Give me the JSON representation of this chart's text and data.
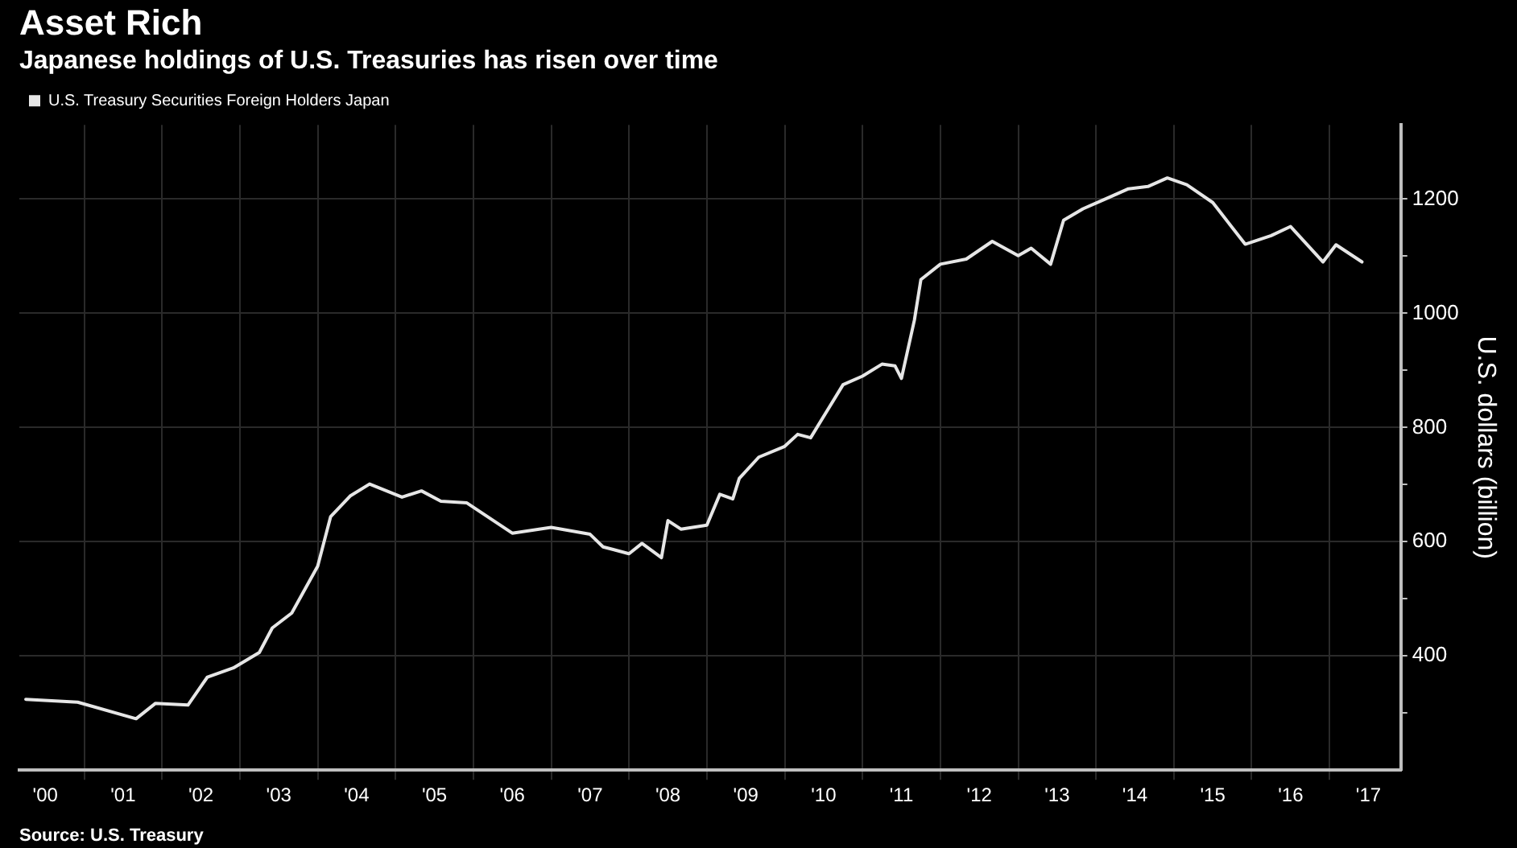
{
  "chart_data": {
    "type": "line",
    "title": "Asset Rich",
    "subtitle": "Japanese holdings of U.S. Treasuries has risen over time",
    "ylabel": "U.S. dollars (billion)",
    "annotations": [
      "Source: U.S. Treasury"
    ],
    "legend": "top left",
    "grid": true,
    "marker": "none",
    "line_style": "solid",
    "xlim": [
      "2000-03",
      "2017-12"
    ],
    "xticks": [
      {
        "value": "2000-07",
        "label": "'00"
      },
      {
        "value": "2001",
        "label": null
      },
      {
        "value": "2001-07",
        "label": "'01"
      },
      {
        "value": "2002",
        "label": null
      },
      {
        "value": "2002-07",
        "label": "'02"
      },
      {
        "value": "2003",
        "label": null
      },
      {
        "value": "2003-07",
        "label": "'03"
      },
      {
        "value": "2004",
        "label": null
      },
      {
        "value": "2004-07",
        "label": "'04"
      },
      {
        "value": "2005",
        "label": null
      },
      {
        "value": "2005-07",
        "label": "'05"
      },
      {
        "value": "2006",
        "label": null
      },
      {
        "value": "2006-07",
        "label": "'06"
      },
      {
        "value": "2007",
        "label": null
      },
      {
        "value": "2007-07",
        "label": "'07"
      },
      {
        "value": "2008",
        "label": null
      },
      {
        "value": "2008-07",
        "label": "'08"
      },
      {
        "value": "2009",
        "label": null
      },
      {
        "value": "2009-07",
        "label": "'09"
      },
      {
        "value": "2010",
        "label": null
      },
      {
        "value": "2010-07",
        "label": "'10"
      },
      {
        "value": "2011",
        "label": null
      },
      {
        "value": "2011-07",
        "label": "'11"
      },
      {
        "value": "2012",
        "label": null
      },
      {
        "value": "2012-07",
        "label": "'12"
      },
      {
        "value": "2013",
        "label": null
      },
      {
        "value": "2013-07",
        "label": "'13"
      },
      {
        "value": "2014",
        "label": null
      },
      {
        "value": "2014-07",
        "label": "'14"
      },
      {
        "value": "2015",
        "label": null
      },
      {
        "value": "2015-07",
        "label": "'15"
      },
      {
        "value": "2016",
        "label": null
      },
      {
        "value": "2016-07",
        "label": "'16"
      },
      {
        "value": "2017",
        "label": null
      },
      {
        "value": "2017-07",
        "label": "'17"
      }
    ],
    "ylim": [
      200,
      1330
    ],
    "yticks": [
      {
        "value": 300,
        "label": null
      },
      400,
      {
        "value": 500,
        "label": null
      },
      600,
      {
        "value": 700,
        "label": null
      },
      800,
      {
        "value": 900,
        "label": null
      },
      1000,
      {
        "value": 1100,
        "label": null
      },
      1200
    ],
    "x": [
      "2000-04",
      "2000-12",
      "2001-09",
      "2001-12",
      "2002-05",
      "2002-08",
      "2002-12",
      "2003-04",
      "2003-06",
      "2003-09",
      "2004-01",
      "2004-03",
      "2004-06",
      "2004-09",
      "2005-02",
      "2005-05",
      "2005-08",
      "2005-12",
      "2006-07",
      "2007-01",
      "2007-07",
      "2007-09",
      "2008-01",
      "2008-03",
      "2008-06",
      "2008-07",
      "2008-09",
      "2009-01",
      "2009-03",
      "2009-05",
      "2009-06",
      "2009-09",
      "2010-01",
      "2010-03",
      "2010-05",
      "2010-10",
      "2011-01",
      "2011-04",
      "2011-06",
      "2011-07",
      "2011-09",
      "2011-10",
      "2012-01",
      "2012-05",
      "2012-09",
      "2013-01",
      "2013-03",
      "2013-06",
      "2013-08",
      "2013-11",
      "2014-03",
      "2014-06",
      "2014-09",
      "2014-12",
      "2015-03",
      "2015-07",
      "2015-12",
      "2016-04",
      "2016-07",
      "2016-12",
      "2017-02",
      "2017-06"
    ],
    "series": [
      {
        "name": "U.S. Treasury Securities Foreign Holders Japan",
        "color": "#e6e6e6",
        "values": [
          324,
          319,
          290,
          317,
          314,
          363,
          379,
          406,
          449,
          475,
          557,
          644,
          680,
          701,
          678,
          689,
          671,
          668,
          615,
          625,
          613,
          591,
          579,
          597,
          572,
          637,
          622,
          629,
          683,
          675,
          711,
          748,
          767,
          788,
          782,
          875,
          890,
          911,
          908,
          886,
          988,
          1059,
          1086,
          1095,
          1126,
          1101,
          1114,
          1086,
          1163,
          1183,
          1203,
          1218,
          1222,
          1237,
          1225,
          1194,
          1121,
          1136,
          1152,
          1090,
          1120,
          1090
        ]
      }
    ]
  }
}
